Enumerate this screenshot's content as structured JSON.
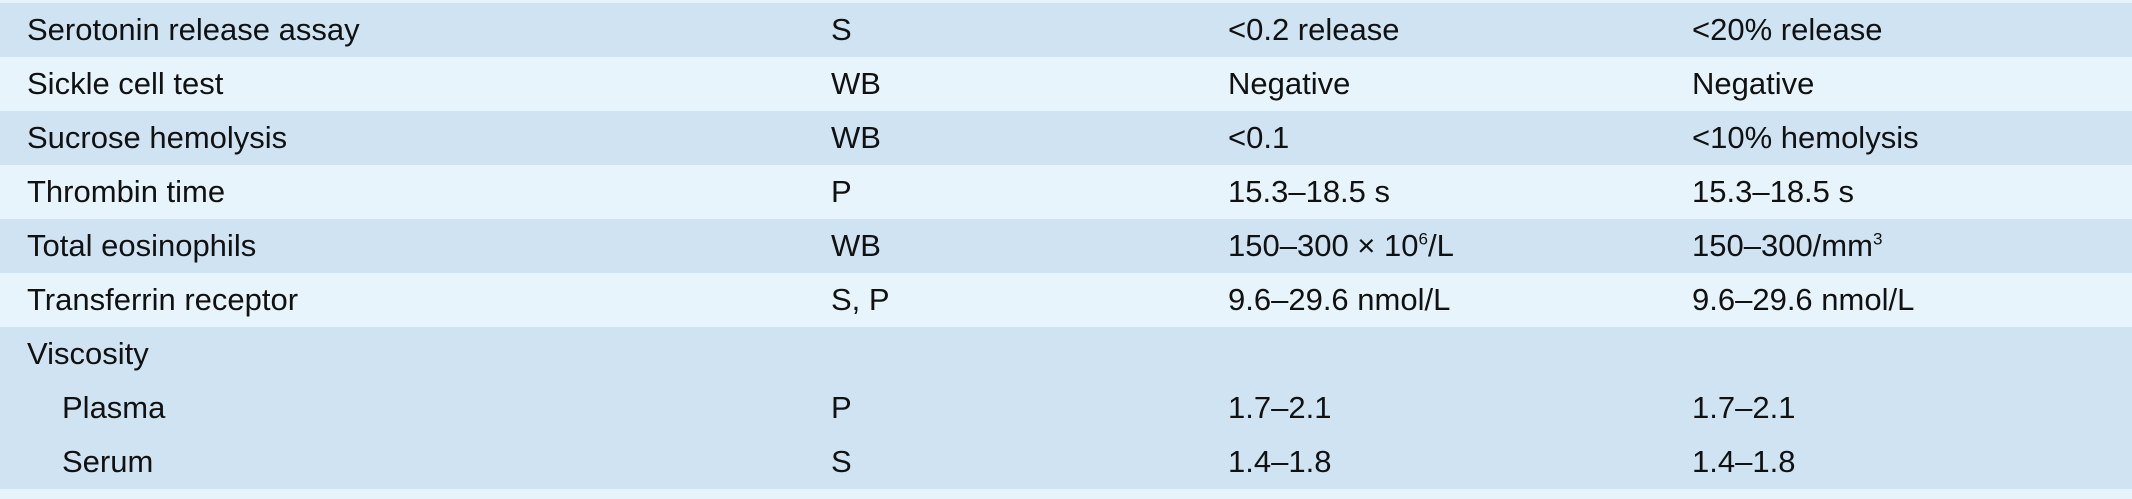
{
  "rows": [
    {
      "test": "Serotonin release assay",
      "specimen": "S",
      "si_units": "<0.2 release",
      "conventional": "<20% release"
    },
    {
      "test": "Sickle cell test",
      "specimen": "WB",
      "si_units": "Negative",
      "conventional": "Negative"
    },
    {
      "test": "Sucrose hemolysis",
      "specimen": "WB",
      "si_units": "<0.1",
      "conventional": "<10% hemolysis"
    },
    {
      "test": "Thrombin time",
      "specimen": "P",
      "si_units": "15.3–18.5 s",
      "conventional": "15.3–18.5 s"
    },
    {
      "test": "Total eosinophils",
      "specimen": "WB",
      "si_units_prefix": "150–300 × 10",
      "si_units_exp": "6",
      "si_units_suffix": "/L",
      "conventional_prefix": "150–300/mm",
      "conventional_exp": "3"
    },
    {
      "test": "Transferrin receptor",
      "specimen": "S, P",
      "si_units": "9.6–29.6 nmol/L",
      "conventional": "9.6–29.6 nmol/L"
    },
    {
      "test": "Viscosity",
      "specimen": "",
      "si_units": "",
      "conventional": ""
    },
    {
      "test": "Plasma",
      "specimen": "P",
      "si_units": "1.7–2.1",
      "conventional": "1.7–2.1"
    },
    {
      "test": "Serum",
      "specimen": "S",
      "si_units": "1.4–1.8",
      "conventional": "1.4–1.8"
    }
  ],
  "colors": {
    "row_alt": "#cfe3f2",
    "row_base": "#e7f4fb",
    "text": "#111111"
  }
}
